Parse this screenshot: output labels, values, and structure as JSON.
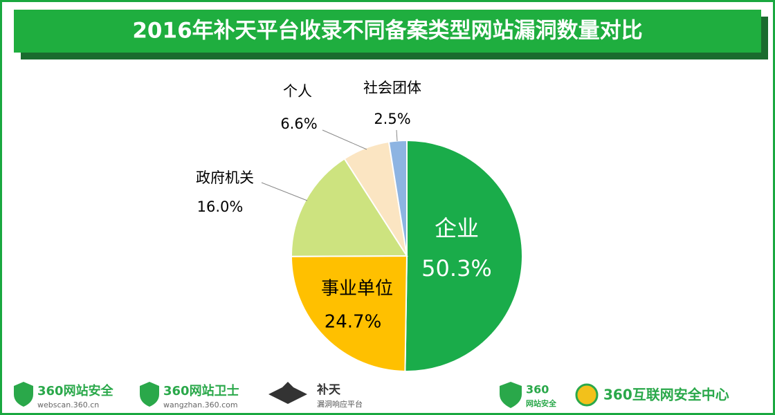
{
  "chart_data": {
    "type": "pie",
    "title": "2016年补天平台收录不同备案类型网站漏洞数量对比",
    "categories": [
      "企业",
      "事业单位",
      "政府机关",
      "个人",
      "社会团体"
    ],
    "values": [
      50.3,
      24.7,
      16.0,
      6.6,
      2.5
    ],
    "value_labels": [
      "50.3%",
      "24.7%",
      "16.0%",
      "6.6%",
      "2.5%"
    ],
    "colors": [
      "#1aac4a",
      "#ffc000",
      "#cde37f",
      "#fbe5c2",
      "#8db4e2"
    ]
  },
  "logos": [
    "360网站安全",
    "webscan.360.cn",
    "360网站卫士",
    "wangzhan.360.com",
    "补天",
    "漏洞响应平台",
    "360",
    "网站安全",
    "360互联网安全中心"
  ]
}
